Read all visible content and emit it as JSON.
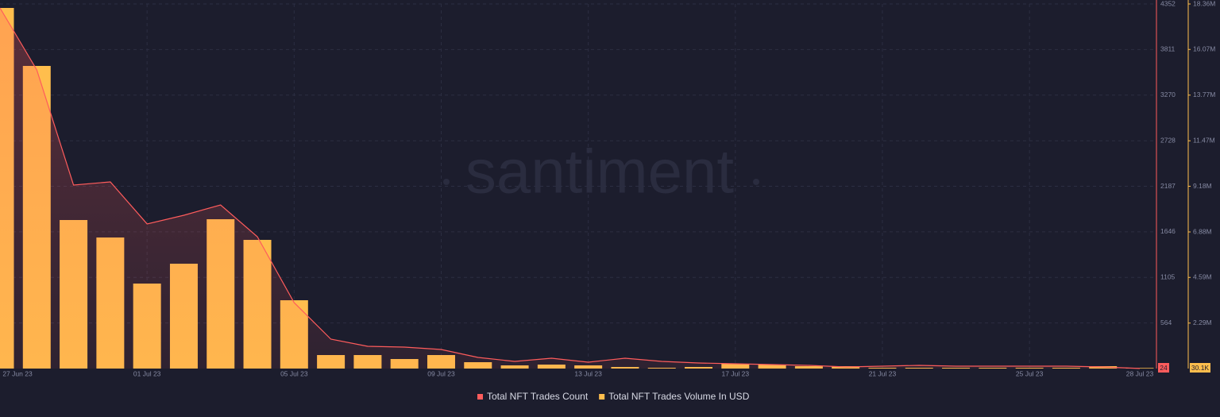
{
  "chart_data": {
    "type": "bar-line",
    "watermark": "santiment",
    "categories": [
      "27 Jun 23",
      null,
      null,
      null,
      "01 Jul 23",
      null,
      null,
      null,
      "05 Jul 23",
      null,
      null,
      null,
      "09 Jul 23",
      null,
      null,
      null,
      "13 Jul 23",
      null,
      null,
      null,
      "17 Jul 23",
      null,
      null,
      null,
      "21 Jul 23",
      null,
      null,
      null,
      "25 Jul 23",
      null,
      null,
      "28 Jul 23"
    ],
    "series": [
      {
        "name": "Total NFT Trades Count",
        "type": "line",
        "axis": "y",
        "color": "#ff5c5c",
        "values": [
          4305,
          3569,
          2202,
          2239,
          1740,
          1843,
          1966,
          1589,
          806,
          372,
          287,
          278,
          249,
          155,
          108,
          146,
          98,
          146,
          108,
          89,
          80,
          70,
          61,
          42,
          51,
          61,
          51,
          51,
          51,
          51,
          42,
          24
        ]
      },
      {
        "name": "Total NFT Trades Volume In USD",
        "type": "bar",
        "axis": "y2",
        "color": "#ffbe4d",
        "values": [
          18160000,
          15240000,
          7480000,
          6600000,
          4280000,
          5280000,
          7520000,
          6480000,
          3440000,
          680000,
          680000,
          480000,
          680000,
          320000,
          160000,
          200000,
          160000,
          80000,
          40000,
          80000,
          240000,
          200000,
          120000,
          120000,
          40000,
          40000,
          40000,
          40000,
          40000,
          40000,
          120000,
          30100
        ],
        "value_labels": [
          null,
          null,
          null,
          null,
          null,
          null,
          null,
          null,
          null,
          null,
          null,
          null,
          null,
          null,
          null,
          null,
          null,
          null,
          null,
          null,
          null,
          null,
          null,
          null,
          null,
          null,
          null,
          null,
          null,
          null,
          null,
          "30.1K"
        ]
      }
    ],
    "ylim": [
      23,
      4352
    ],
    "yticks": [
      564,
      1105,
      1646,
      2187,
      2728,
      3270,
      3811,
      4352
    ],
    "y2lim": [
      0,
      18360000
    ],
    "y2ticks": [
      {
        "value": 2290000,
        "label": "2.29M"
      },
      {
        "value": 4590000,
        "label": "4.59M"
      },
      {
        "value": 6880000,
        "label": "6.88M"
      },
      {
        "value": 9180000,
        "label": "9.18M"
      },
      {
        "value": 11470000,
        "label": "11.47M"
      },
      {
        "value": 13770000,
        "label": "13.77M"
      },
      {
        "value": 16070000,
        "label": "16.07M"
      },
      {
        "value": 18360000,
        "label": "18.36M"
      }
    ],
    "grid": true
  }
}
